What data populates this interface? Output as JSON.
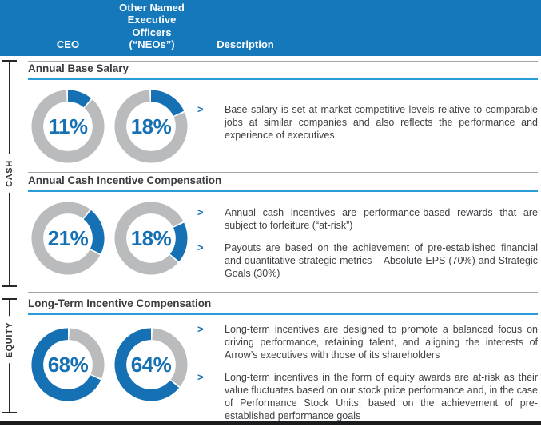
{
  "header": {
    "ceo_label": "CEO",
    "neos_label": "Other Named\nExecutive\nOfficers\n(“NEOs”)",
    "description_label": "Description"
  },
  "side_labels": {
    "cash": "CASH",
    "equity": "EQUITY"
  },
  "bullet_marker": ">",
  "colors": {
    "header_blue": "#1578BA",
    "accent_blue": "#1571B4",
    "title_underline_blue": "#2B9CD8",
    "ring_gray": "#B9BBBD",
    "separator_gray": "#A2A4A7",
    "text_dark": "#3F4245",
    "bottom_rule_black": "#1B1C1E"
  },
  "chart_data": {
    "type": "pie",
    "variant": "donut-segment-highlight",
    "unit": "%",
    "layout_note": "Each donut highlights one pay component in blue; segments stack clockwise from 12 o'clock in order base salary, cash incentive, long-term incentive; remainder of ring is gray",
    "colors": {
      "segment": "#1571B4",
      "remainder": "#B9BBBD",
      "gap": "#FFFFFF"
    },
    "groups": [
      {
        "section": "Annual Base Salary",
        "series": [
          {
            "name": "CEO",
            "value": 11,
            "cumulative_start": 0,
            "label": "11%"
          },
          {
            "name": "NEOs",
            "value": 18,
            "cumulative_start": 0,
            "label": "18%"
          }
        ]
      },
      {
        "section": "Annual Cash Incentive Compensation",
        "series": [
          {
            "name": "CEO",
            "value": 21,
            "cumulative_start": 11,
            "label": "21%"
          },
          {
            "name": "NEOs",
            "value": 18,
            "cumulative_start": 18,
            "label": "18%"
          }
        ]
      },
      {
        "section": "Long-Term Incentive Compensation",
        "series": [
          {
            "name": "CEO",
            "value": 68,
            "cumulative_start": 32,
            "label": "68%"
          },
          {
            "name": "NEOs",
            "value": 64,
            "cumulative_start": 36,
            "label": "64%"
          }
        ]
      }
    ]
  },
  "sections": [
    {
      "title": "Annual Base Salary",
      "bullets": [
        "Base salary is set at market-competitive levels relative to comparable jobs at similar companies and also reflects the performance and experience of executives"
      ]
    },
    {
      "title": "Annual Cash Incentive Compensation",
      "bullets": [
        "Annual cash incentives are performance-based rewards that are subject to forfeiture (“at-risk”)",
        "Payouts are based on the achievement of pre-established financial and quantitative strategic metrics – Absolute EPS (70%) and Strategic Goals (30%)"
      ]
    },
    {
      "title": "Long-Term Incentive Compensation",
      "bullets": [
        "Long-term incentives are designed to promote a balanced focus on driving performance, retaining talent, and aligning the interests of Arrow’s executives with those of its shareholders",
        "Long-term incentives in the form of equity awards are at-risk as their value fluctuates based on our stock price performance and, in the case of Performance Stock Units, based on the achievement of pre-established performance goals"
      ]
    }
  ]
}
